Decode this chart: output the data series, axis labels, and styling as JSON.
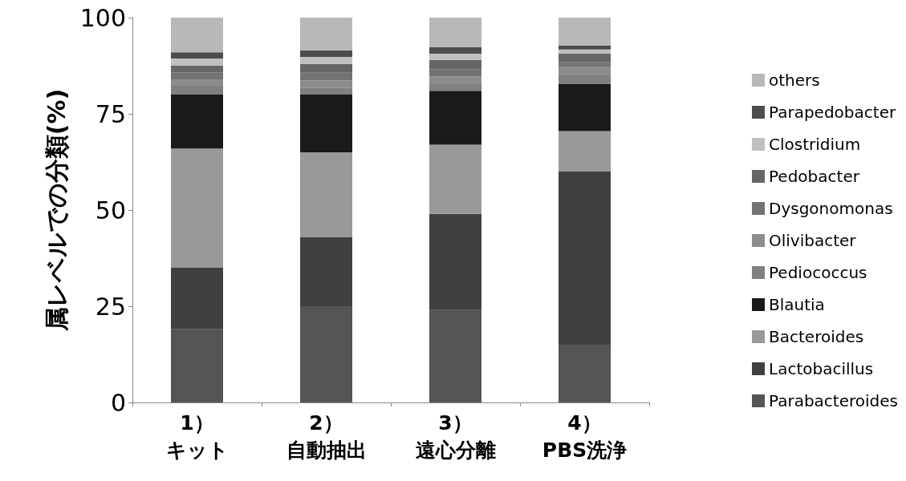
{
  "chart_data": {
    "type": "bar",
    "stacked": true,
    "ylabel": "属レベルでの分類(%)",
    "categories": [
      "1）キット",
      "2）自動抽出",
      "3）遠心分離",
      "4）\nPBS洗浄"
    ],
    "ylim": [
      0,
      100
    ],
    "yticks": [
      0,
      25,
      50,
      75,
      100
    ],
    "grid": false,
    "legend": "right",
    "series": [
      {
        "name": "Parabacteroides",
        "color": "#555555",
        "values": [
          19,
          25,
          24,
          15
        ]
      },
      {
        "name": "Lactobacillus",
        "color": "#404040",
        "values": [
          16,
          18,
          25,
          45
        ]
      },
      {
        "name": "Bacteroides",
        "color": "#999999",
        "values": [
          31,
          22,
          18,
          10.5
        ]
      },
      {
        "name": "Blautia",
        "color": "#1a1a1a",
        "values": [
          14,
          15,
          14,
          12.2
        ]
      },
      {
        "name": "Pediococcus",
        "color": "#808080",
        "values": [
          2.3,
          1.7,
          1.7,
          2.3
        ]
      },
      {
        "name": "Olivibacter",
        "color": "#8c8c8c",
        "values": [
          1.5,
          2,
          2,
          2.3
        ]
      },
      {
        "name": "Dysgonomonas",
        "color": "#737373",
        "values": [
          2,
          2,
          1.8,
          1.2
        ]
      },
      {
        "name": "Pedobacter",
        "color": "#666666",
        "values": [
          1.7,
          2.2,
          2.5,
          2.1
        ]
      },
      {
        "name": "Clostridium",
        "color": "#c0c0c0",
        "values": [
          1.9,
          1.9,
          1.6,
          1.1
        ]
      },
      {
        "name": "Parapedobacter",
        "color": "#4d4d4d",
        "values": [
          1.6,
          1.7,
          1.7,
          1
        ]
      },
      {
        "name": "others",
        "color": "#b8b8b8",
        "values": [
          9,
          8.5,
          7.7,
          7.3
        ]
      }
    ]
  }
}
